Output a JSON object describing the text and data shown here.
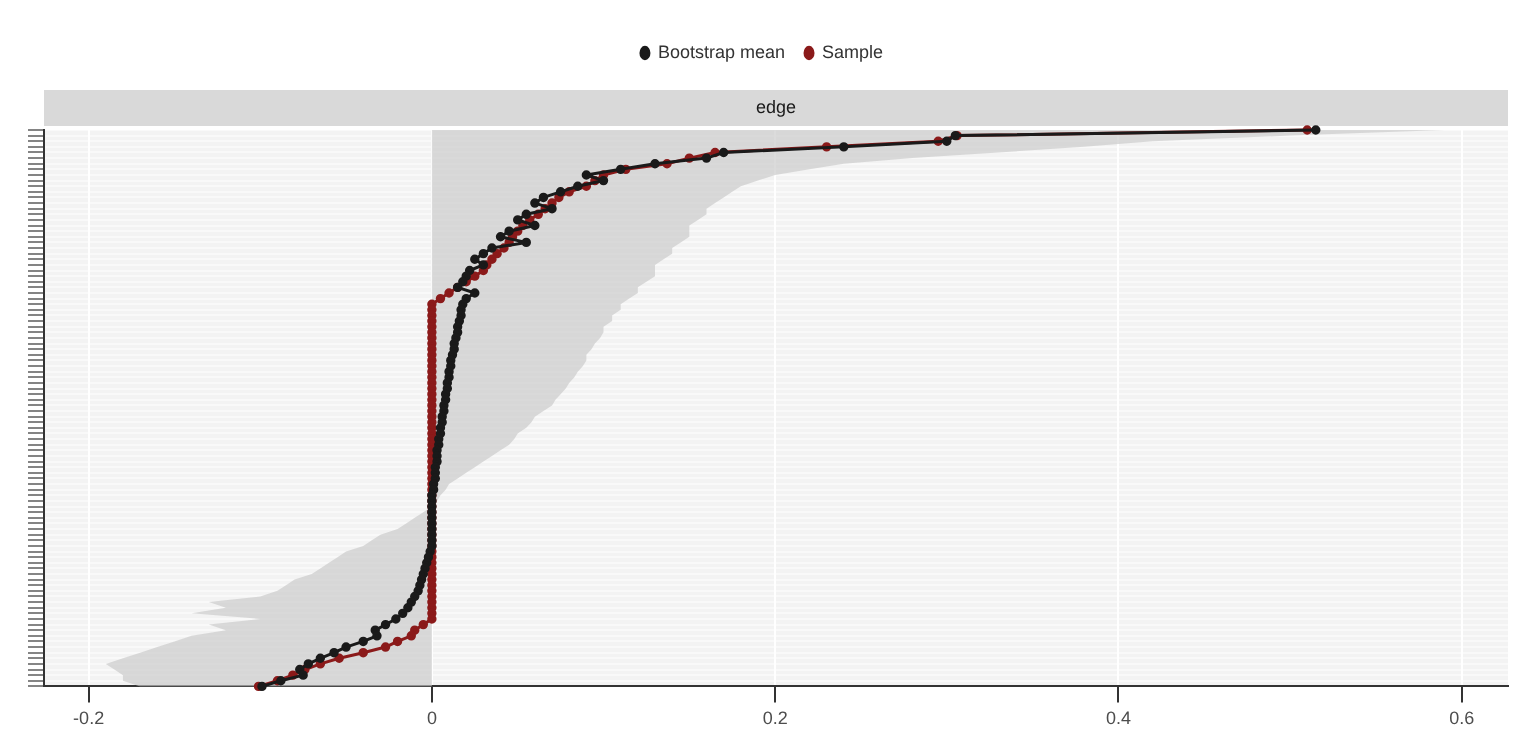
{
  "chart_data": {
    "type": "line",
    "orientation": "horizontal",
    "title": "edge",
    "categories": [
      null,
      null,
      null,
      null,
      null,
      null,
      null,
      null,
      null,
      null,
      null,
      null,
      null,
      null,
      null,
      null,
      null,
      null,
      null,
      null,
      null,
      null,
      null,
      null,
      null,
      null,
      null,
      null,
      null,
      null,
      null,
      null,
      null,
      null,
      null,
      null,
      null,
      null,
      null,
      null,
      null,
      null,
      null,
      null,
      null,
      null,
      null,
      null,
      null,
      null,
      null,
      null,
      null,
      null,
      null,
      null,
      null,
      null,
      null,
      null,
      null,
      null,
      null,
      null,
      null,
      null,
      null,
      null,
      null,
      null,
      null,
      null,
      null,
      null,
      null,
      null,
      null,
      null,
      null,
      null,
      null,
      null,
      null,
      null,
      null,
      null,
      null,
      null,
      null,
      null,
      null,
      null,
      null,
      null,
      null,
      null,
      null,
      null,
      null,
      null
    ],
    "series": [
      {
        "name": "Bootstrap mean",
        "color": "#1a1a1a",
        "values": [
          0.515,
          0.305,
          0.3,
          0.24,
          0.17,
          0.16,
          0.13,
          0.11,
          0.09,
          0.1,
          0.085,
          0.075,
          0.065,
          0.06,
          0.07,
          0.055,
          0.05,
          0.06,
          0.045,
          0.04,
          0.055,
          0.035,
          0.03,
          0.025,
          0.03,
          0.022,
          0.02,
          0.018,
          0.015,
          0.025,
          0.02,
          0.018,
          0.017,
          0.017,
          0.016,
          0.015,
          0.015,
          0.014,
          0.013,
          0.013,
          0.012,
          0.011,
          0.011,
          0.01,
          0.01,
          0.009,
          0.009,
          0.008,
          0.008,
          0.007,
          0.007,
          0.006,
          0.006,
          0.005,
          0.005,
          0.004,
          0.004,
          0.003,
          0.003,
          0.003,
          0.002,
          0.002,
          0.002,
          0.001,
          0.001,
          0,
          0,
          0,
          0,
          0,
          0,
          0,
          0,
          0,
          0,
          -0.001,
          -0.002,
          -0.003,
          -0.004,
          -0.005,
          -0.006,
          -0.007,
          -0.008,
          -0.01,
          -0.012,
          -0.014,
          -0.017,
          -0.021,
          -0.027,
          -0.033,
          -0.032,
          -0.04,
          -0.05,
          -0.057,
          -0.065,
          -0.072,
          -0.077,
          -0.075,
          -0.088,
          -0.099
        ],
        "lower": [
          0,
          0,
          0,
          0,
          0,
          0,
          0,
          0,
          0,
          0,
          0,
          0,
          0,
          0,
          0,
          0,
          0,
          0,
          0,
          0,
          0,
          0,
          0,
          0,
          0,
          0,
          0,
          0,
          0,
          0,
          0,
          0,
          0,
          0,
          0,
          0,
          0,
          0,
          0,
          0,
          0,
          0,
          0,
          0,
          0,
          0,
          0,
          0,
          0,
          0,
          0,
          0,
          0,
          0,
          0,
          0,
          0,
          0,
          0,
          0,
          0,
          0,
          0,
          0,
          0,
          0,
          0,
          0,
          -0.005,
          -0.01,
          -0.015,
          -0.02,
          -0.03,
          -0.035,
          -0.04,
          -0.05,
          -0.055,
          -0.06,
          -0.065,
          -0.07,
          -0.08,
          -0.085,
          -0.09,
          -0.1,
          -0.13,
          -0.12,
          -0.14,
          -0.1,
          -0.13,
          -0.12,
          -0.14,
          -0.15,
          -0.16,
          -0.17,
          -0.18,
          -0.19,
          -0.185,
          -0.18,
          -0.18,
          -0.17
        ],
        "upper": [
          0.59,
          0.5,
          0.42,
          0.38,
          0.33,
          0.28,
          0.24,
          0.22,
          0.2,
          0.19,
          0.18,
          0.175,
          0.17,
          0.165,
          0.16,
          0.16,
          0.155,
          0.15,
          0.15,
          0.15,
          0.145,
          0.14,
          0.14,
          0.135,
          0.13,
          0.13,
          0.13,
          0.125,
          0.12,
          0.12,
          0.115,
          0.11,
          0.11,
          0.105,
          0.105,
          0.1,
          0.1,
          0.098,
          0.095,
          0.093,
          0.09,
          0.09,
          0.088,
          0.085,
          0.083,
          0.08,
          0.078,
          0.075,
          0.072,
          0.07,
          0.065,
          0.06,
          0.058,
          0.055,
          0.05,
          0.048,
          0.045,
          0.04,
          0.035,
          0.03,
          0.025,
          0.02,
          0.015,
          0.01,
          0.008,
          0.005,
          0.003,
          0.002,
          0.001,
          0.001,
          0.001,
          0,
          0,
          0,
          0,
          0,
          0,
          0,
          0,
          0,
          0,
          0,
          0,
          0,
          0,
          0,
          0,
          0,
          0,
          0,
          0,
          0,
          0,
          0,
          0,
          0,
          0,
          0,
          0,
          0
        ]
      },
      {
        "name": "Sample",
        "color": "#8b1a1a",
        "values": [
          0.51,
          0.306,
          0.295,
          0.23,
          0.165,
          0.15,
          0.137,
          0.113,
          0.1,
          0.095,
          0.09,
          0.08,
          0.074,
          0.07,
          0.066,
          0.062,
          0.057,
          0.053,
          0.05,
          0.047,
          0.045,
          0.042,
          0.038,
          0.035,
          0.032,
          0.03,
          0.025,
          0.02,
          0.015,
          0.01,
          0.005,
          0,
          0,
          0,
          0,
          0,
          0,
          0,
          0,
          0,
          0,
          0,
          0,
          0,
          0,
          0,
          0,
          0,
          0,
          0,
          0,
          0,
          0,
          0,
          0,
          0,
          0,
          0,
          0,
          0,
          0,
          0,
          0,
          0,
          0,
          0,
          0,
          0,
          0,
          0,
          0,
          0,
          0,
          0,
          0,
          0,
          0,
          0,
          0,
          0,
          0,
          0,
          0,
          0,
          0,
          0,
          0,
          0,
          -0.005,
          -0.01,
          -0.012,
          -0.02,
          -0.027,
          -0.04,
          -0.054,
          -0.065,
          -0.074,
          -0.081,
          -0.09,
          -0.101
        ]
      }
    ],
    "xlim": [
      -0.226,
      0.627
    ],
    "xticks": [
      -0.2,
      0,
      0.2,
      0.4,
      0.6
    ],
    "grid": true,
    "legend": "top",
    "marker": "circle",
    "line_style": "solid"
  }
}
